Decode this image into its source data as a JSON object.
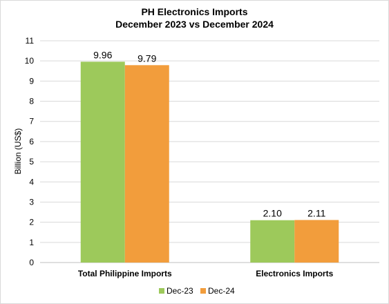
{
  "chart_data": {
    "type": "bar",
    "title": "PH Electronics Imports",
    "subtitle": "December 2023 vs December 2024",
    "ylabel": "Billion (US$)",
    "xlabel": "",
    "ylim": [
      0,
      11
    ],
    "yticks": [
      "0",
      "1",
      "2",
      "3",
      "4",
      "5",
      "6",
      "7",
      "8",
      "9",
      "10",
      "11"
    ],
    "categories": [
      "Total Philippine Imports",
      "Electronics Imports"
    ],
    "series": [
      {
        "name": "Dec-23",
        "color": "#9dc95b",
        "values": [
          9.96,
          2.1
        ],
        "labels": [
          "9.96",
          "2.10"
        ]
      },
      {
        "name": "Dec-24",
        "color": "#f29d3c",
        "values": [
          9.79,
          2.11
        ],
        "labels": [
          "9.79",
          "2.11"
        ]
      }
    ],
    "grid": true,
    "legend": "bottom"
  }
}
